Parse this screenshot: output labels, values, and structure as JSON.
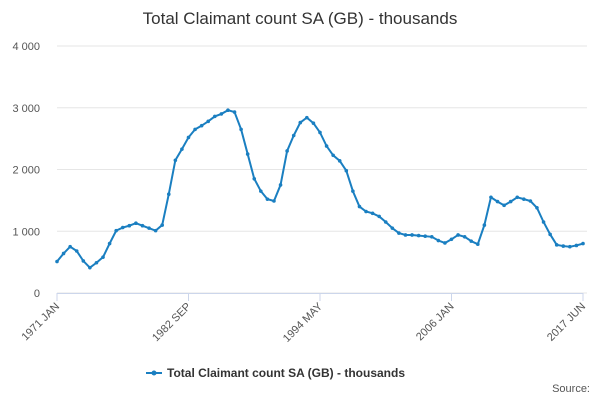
{
  "chart_data": {
    "type": "line",
    "title": "Total Claimant count SA (GB) - thousands",
    "categories": [
      "1971 JAN",
      null,
      null,
      null,
      null,
      null,
      null,
      null,
      null,
      null,
      null,
      null,
      null,
      null,
      null,
      null,
      null,
      null,
      null,
      null,
      "1982 SEP",
      null,
      null,
      null,
      null,
      null,
      null,
      null,
      null,
      null,
      null,
      null,
      null,
      null,
      null,
      null,
      null,
      null,
      null,
      null,
      "1994 MAY",
      null,
      null,
      null,
      null,
      null,
      null,
      null,
      null,
      null,
      null,
      null,
      null,
      null,
      null,
      null,
      null,
      null,
      null,
      null,
      "2006 JAN",
      null,
      null,
      null,
      null,
      null,
      null,
      null,
      null,
      null,
      null,
      null,
      null,
      null,
      null,
      null,
      null,
      null,
      null,
      null,
      "2017 JUN"
    ],
    "series": [
      {
        "name": "Total Claimant count SA (GB) - thousands",
        "color": "#1a7fc1",
        "values": [
          510,
          640,
          750,
          680,
          520,
          410,
          490,
          580,
          800,
          1010,
          1060,
          1090,
          1130,
          1090,
          1050,
          1010,
          1100,
          1600,
          2150,
          2330,
          2520,
          2650,
          2710,
          2780,
          2860,
          2900,
          2960,
          2930,
          2650,
          2250,
          1850,
          1650,
          1520,
          1490,
          1750,
          2300,
          2550,
          2760,
          2840,
          2750,
          2600,
          2380,
          2230,
          2140,
          1980,
          1650,
          1400,
          1320,
          1290,
          1240,
          1150,
          1050,
          970,
          940,
          940,
          930,
          920,
          910,
          850,
          810,
          870,
          940,
          910,
          840,
          790,
          1100,
          1550,
          1480,
          1420,
          1480,
          1550,
          1520,
          1490,
          1380,
          1150,
          950,
          780,
          760,
          750,
          770,
          800
        ]
      }
    ],
    "ylim": [
      0,
      4000
    ],
    "yticks": [
      0,
      {
        "value": 1000,
        "label": "1 000"
      },
      {
        "value": 2000,
        "label": "2 000"
      },
      {
        "value": 3000,
        "label": "3 000"
      },
      {
        "value": 4000,
        "label": "4 000"
      }
    ],
    "grid": true,
    "legend": "bottom",
    "source_label": "Source:"
  }
}
